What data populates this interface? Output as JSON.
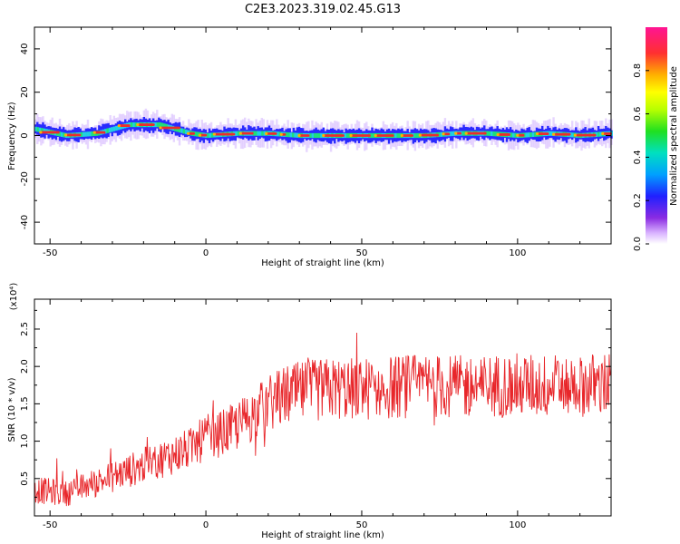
{
  "title": "C2E3.2023.319.02.45.G13",
  "chart_data": [
    {
      "type": "heatmap",
      "xlabel": "Height of straight line (km)",
      "ylabel": "Frequency (Hz)",
      "xlim": [
        -55,
        130
      ],
      "ylim": [
        -50,
        50
      ],
      "xticks": [
        -50,
        0,
        50,
        100
      ],
      "yticks": [
        -40,
        -20,
        0,
        20,
        40
      ],
      "colorbar": {
        "label": "Normalized spectral amplitude",
        "range": [
          0.0,
          1.0
        ],
        "ticks": [
          "0.0",
          "0.2",
          "0.4",
          "0.6",
          "0.8"
        ]
      },
      "ridge": {
        "x": [
          -55,
          -45,
          -35,
          -30,
          -25,
          -20,
          -15,
          -10,
          -5,
          0,
          10,
          20,
          30,
          40,
          50,
          60,
          70,
          80,
          90,
          100,
          110,
          120,
          130
        ],
        "frequency_hz": [
          3,
          0,
          1,
          3,
          5,
          5,
          5,
          3,
          1,
          0,
          1,
          1,
          0,
          0,
          0,
          0,
          0,
          1,
          1,
          0,
          1,
          0,
          1
        ]
      }
    },
    {
      "type": "line",
      "xlabel": "Height of straight line (km)",
      "ylabel": "SNR (10 * v/v)",
      "yscale_note": "(x10⁴)",
      "xlim": [
        -55,
        130
      ],
      "ylim": [
        0,
        2.9
      ],
      "xticks": [
        -50,
        0,
        50,
        100
      ],
      "yticks": [
        0.5,
        1.0,
        1.5,
        2.0,
        2.5
      ],
      "color": "#e8262a",
      "trend": {
        "x": [
          -55,
          -45,
          -35,
          -25,
          -15,
          -5,
          0,
          5,
          10,
          15,
          20,
          25,
          30,
          40,
          50,
          60,
          70,
          80,
          90,
          100,
          110,
          120,
          130
        ],
        "y": [
          0.35,
          0.3,
          0.45,
          0.6,
          0.75,
          0.9,
          1.05,
          1.1,
          1.2,
          1.35,
          1.5,
          1.6,
          1.65,
          1.7,
          1.7,
          1.72,
          1.75,
          1.72,
          1.74,
          1.75,
          1.74,
          1.76,
          1.75
        ]
      }
    }
  ]
}
